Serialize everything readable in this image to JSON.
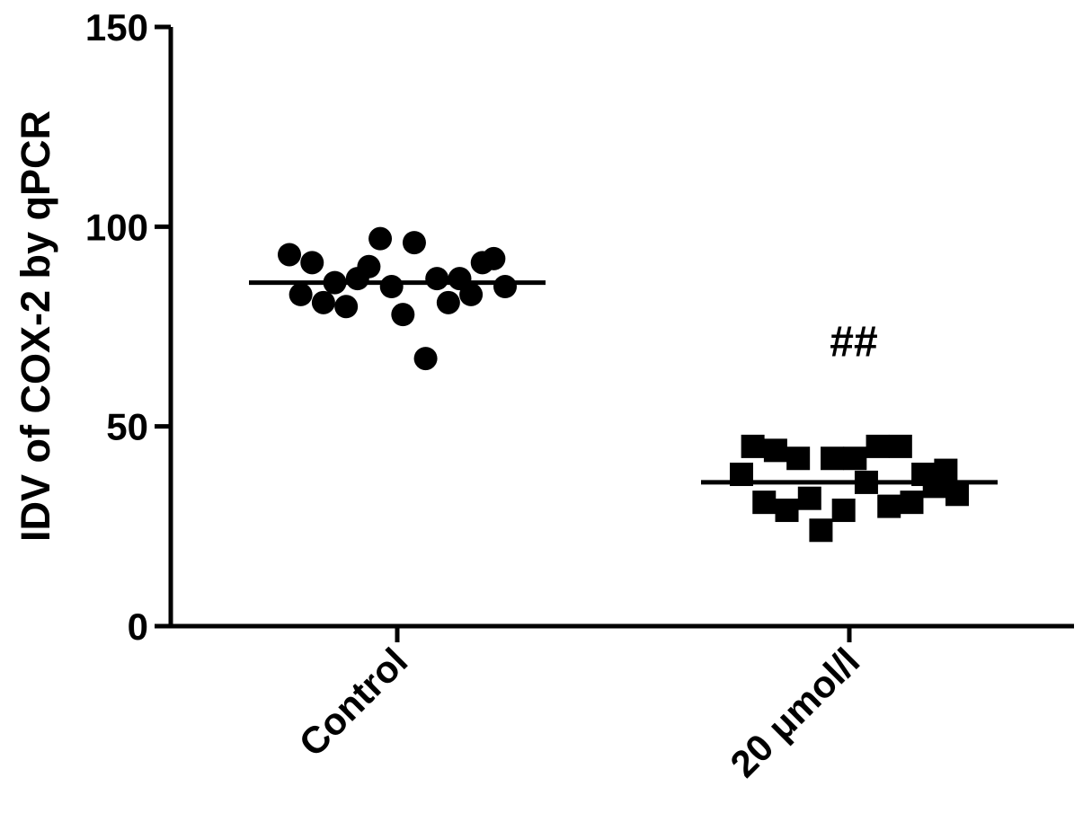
{
  "chart_data": {
    "type": "scatter",
    "ylabel": "IDV of COX-2 by qPCR",
    "xlabel": "",
    "ylim": [
      0,
      150
    ],
    "yticks": [
      "0",
      "50",
      "100",
      "150"
    ],
    "categories": [
      "Control",
      "20 μmol/l"
    ],
    "series": [
      {
        "category": "Control",
        "marker": "circle",
        "values": [
          93,
          83,
          91,
          81,
          86,
          80,
          87,
          90,
          97,
          85,
          78,
          96,
          67,
          87,
          81,
          87,
          83,
          91,
          92,
          85
        ],
        "mean": 86
      },
      {
        "category": "20 μmol/l",
        "marker": "square",
        "values": [
          38,
          45,
          31,
          44,
          29,
          42,
          32,
          24,
          42,
          29,
          42,
          36,
          45,
          30,
          45,
          31,
          38,
          35,
          39,
          33
        ],
        "mean": 36
      }
    ],
    "annotations": [
      {
        "text": "##",
        "category": "20 μmol/l",
        "y": 71
      }
    ],
    "grid": false,
    "legend": "none",
    "marker_color": "#000000"
  }
}
